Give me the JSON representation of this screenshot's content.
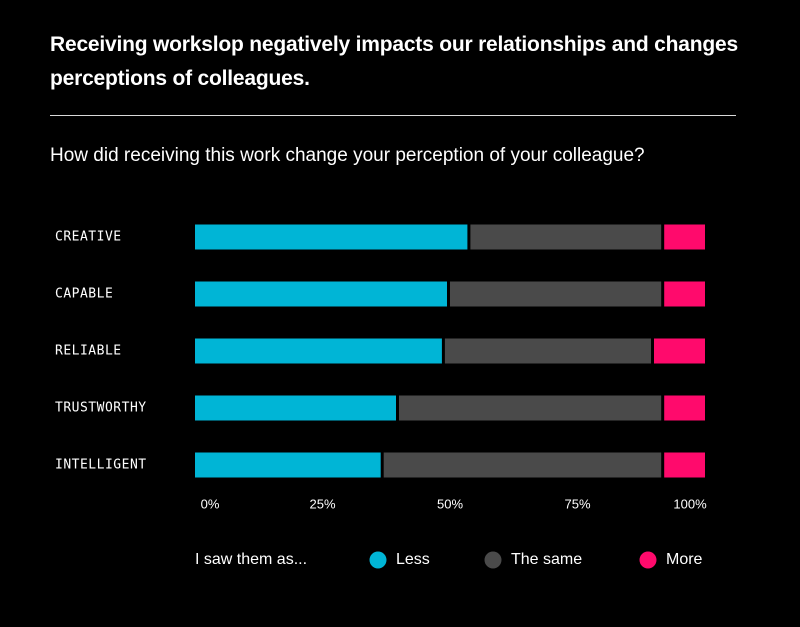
{
  "header": {
    "headline": "Receiving workslop negatively impacts our relationships and changes perceptions of colleagues.",
    "question": "How did receiving this work change your perception of your colleague?"
  },
  "colors": {
    "background": "#000000",
    "less": "#00b5d6",
    "same": "#4a4a4a",
    "more": "#ff0a6c",
    "rule": "#d9d9d9"
  },
  "chart_data": {
    "type": "bar",
    "orientation": "horizontal",
    "stacked": true,
    "normalized": true,
    "categories": [
      "CREATIVE",
      "CAPABLE",
      "RELIABLE",
      "TRUSTWORTHY",
      "INTELLIGENT"
    ],
    "series": [
      {
        "name": "Less",
        "color": "#00b5d6",
        "values": [
          54,
          50,
          49,
          40,
          37
        ]
      },
      {
        "name": "The same",
        "color": "#4a4a4a",
        "values": [
          38,
          42,
          41,
          52,
          55
        ]
      },
      {
        "name": "More",
        "color": "#ff0a6c",
        "values": [
          8,
          8,
          10,
          8,
          8
        ]
      }
    ],
    "xlim": [
      0,
      100
    ],
    "x_ticks": [
      "0%",
      "25%",
      "50%",
      "75%",
      "100%"
    ],
    "legend_title": "I saw them as...",
    "legend_position": "bottom",
    "grid": false
  }
}
